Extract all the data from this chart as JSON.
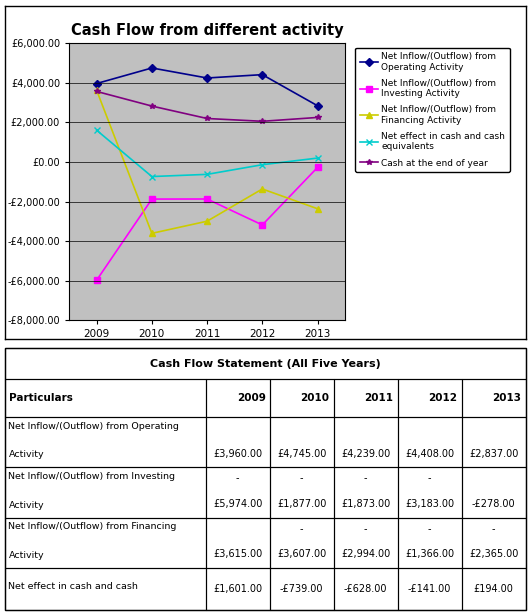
{
  "chart_title": "Cash Flow from different activity",
  "table_title": "Cash Flow Statement (All Five Years)",
  "years": [
    2009,
    2010,
    2011,
    2012,
    2013
  ],
  "series_order": [
    "operating",
    "investing",
    "financing",
    "net_effect",
    "cash_end"
  ],
  "series": {
    "operating": {
      "label": "Net Inflow/(Outflow) from\nOperating Activity",
      "values": [
        3960,
        4745,
        4239,
        4408,
        2837
      ],
      "color": "#00008B",
      "marker": "D",
      "linestyle": "-"
    },
    "investing": {
      "label": "Net Inflow/(Outflow) from\nInvesting Activity",
      "values": [
        -5974,
        -1877,
        -1873,
        -3183,
        -278
      ],
      "color": "#FF00FF",
      "marker": "s",
      "linestyle": "-"
    },
    "financing": {
      "label": "Net Inflow/(Outflow) from\nFinancing Activity",
      "values": [
        3615,
        -3607,
        -2994,
        -1366,
        -2365
      ],
      "color": "#CCCC00",
      "marker": "^",
      "linestyle": "-"
    },
    "net_effect": {
      "label": "Net effect in cash and cash\nequivalents",
      "values": [
        1601,
        -739,
        -628,
        -141,
        194
      ],
      "color": "#00CCCC",
      "marker": "x",
      "linestyle": "-"
    },
    "cash_end": {
      "label": "Cash at the end of year",
      "values": [
        3560,
        2821,
        2193,
        2052,
        2246
      ],
      "color": "#800080",
      "marker": "*",
      "linestyle": "-"
    }
  },
  "ylim": [
    -8000,
    6000
  ],
  "yticks": [
    -8000,
    -6000,
    -4000,
    -2000,
    0,
    2000,
    4000,
    6000
  ],
  "plot_bg": "#C0C0C0",
  "col_headers": [
    "Particulars",
    "2009",
    "2010",
    "2011",
    "2012",
    "2013"
  ],
  "table_data": [
    {
      "label_line1": "Net Inflow/(Outflow) from Operating",
      "label_line2": "Activity",
      "dashes": [
        false,
        false,
        false,
        false,
        false
      ],
      "values": [
        "£3,960.00",
        "£4,745.00",
        "£4,239.00",
        "£4,408.00",
        "£2,837.00"
      ]
    },
    {
      "label_line1": "Net Inflow/(Outflow) from Investing",
      "label_line2": "Activity",
      "dashes": [
        true,
        true,
        true,
        true,
        false
      ],
      "values": [
        "£5,974.00",
        "£1,877.00",
        "£1,873.00",
        "£3,183.00",
        "-£278.00"
      ]
    },
    {
      "label_line1": "Net Inflow/(Outflow) from Financing",
      "label_line2": "Activity",
      "dashes": [
        false,
        true,
        true,
        true,
        true
      ],
      "values": [
        "£3,615.00",
        "£3,607.00",
        "£2,994.00",
        "£1,366.00",
        "£2,365.00"
      ]
    },
    {
      "label_line1": "Net effect in cash and cash",
      "label_line2": "",
      "dashes": [
        false,
        false,
        false,
        false,
        false
      ],
      "values": [
        "£1,601.00",
        "-£739.00",
        "-£628.00",
        "-£141.00",
        "£194.00"
      ]
    }
  ]
}
